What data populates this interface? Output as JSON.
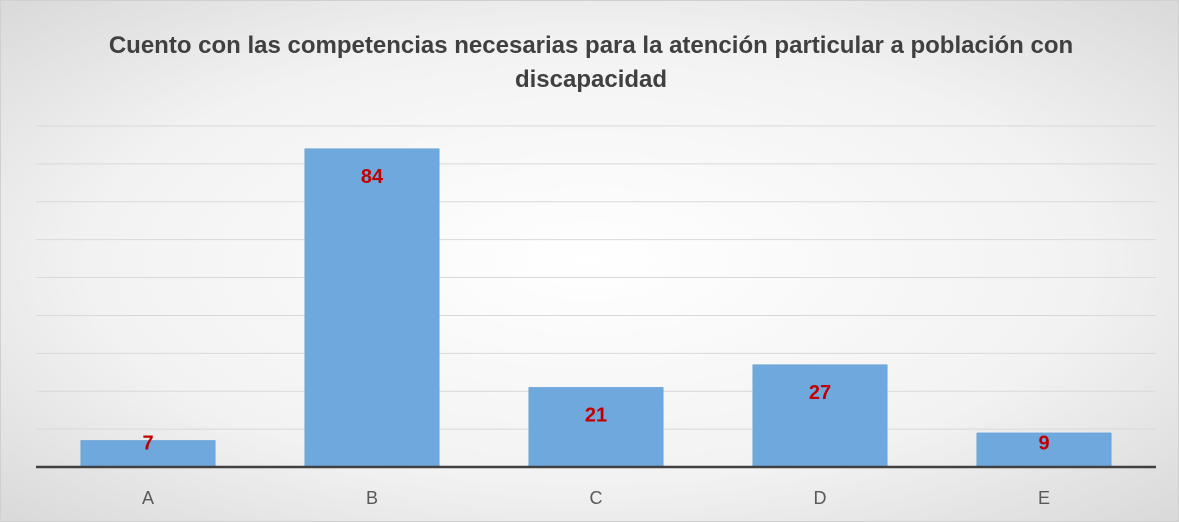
{
  "chart_data": {
    "type": "bar",
    "title": "Cuento con las competencias necesarias para la atención particular a población con discapacidad",
    "categories": [
      "A",
      "B",
      "C",
      "D",
      "E"
    ],
    "values": [
      7,
      84,
      21,
      27,
      9
    ],
    "color": "#6fa8dc",
    "label_color": "#c00000",
    "ylim": [
      0,
      90
    ],
    "yticks": [
      0,
      10,
      20,
      30,
      40,
      50,
      60,
      70,
      80,
      90
    ],
    "grid": true
  }
}
